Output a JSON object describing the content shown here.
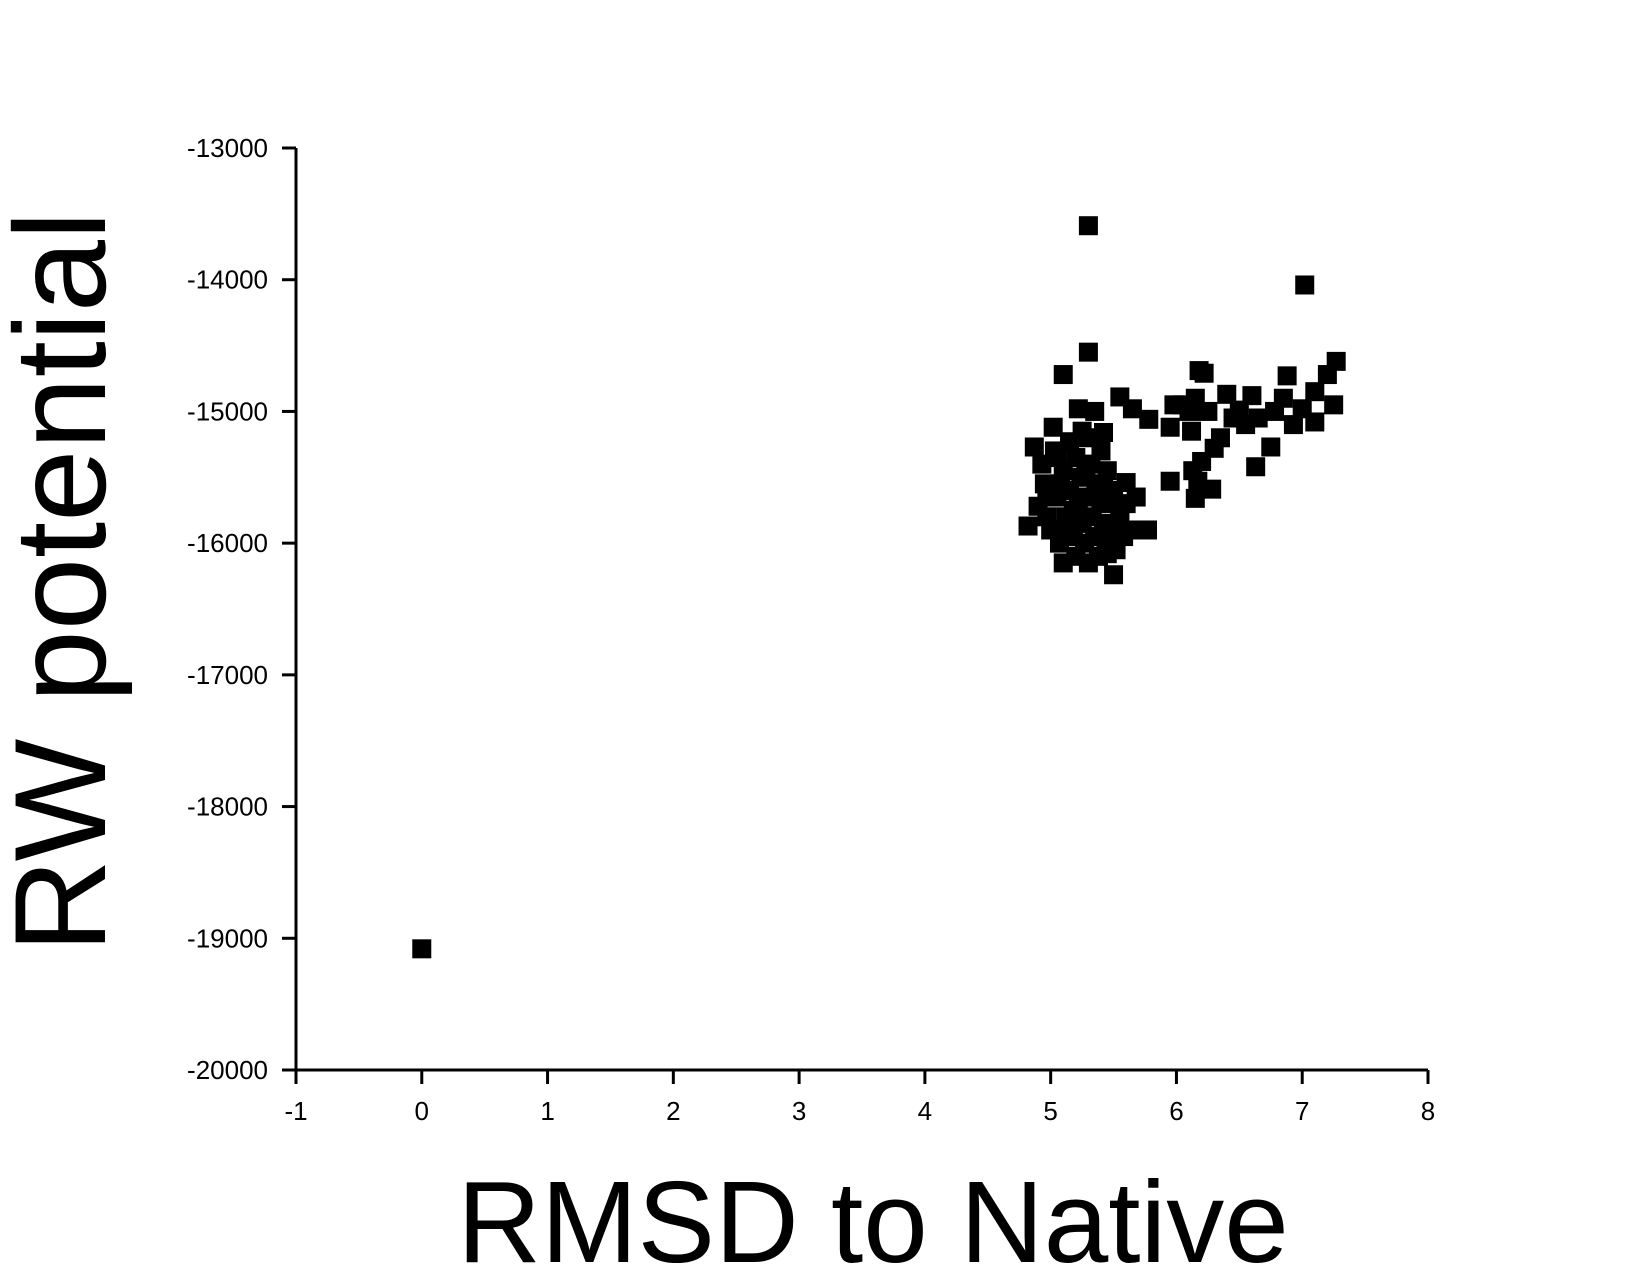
{
  "chart_data": {
    "type": "scatter",
    "x_label": "RMSD to Native",
    "y_label": "RW potential",
    "color": "#000000",
    "marker": "square",
    "xlim": [
      -1,
      8
    ],
    "xticks": [
      -1,
      0,
      1,
      2,
      3,
      4,
      5,
      6,
      7,
      8
    ],
    "ylim": [
      -20000,
      -13000
    ],
    "yticks": [
      -20000,
      -19000,
      -18000,
      -17000,
      -16000,
      -15000,
      -14000,
      -13000
    ],
    "x": [
      0,
      5.3,
      7.02,
      5.3,
      5.1,
      7.27,
      7.2,
      7.1,
      7.0,
      7.25,
      7.1,
      6.93,
      6.88,
      6.85,
      6.78,
      6.75,
      6.65,
      6.63,
      6.6,
      6.55,
      6.5,
      6.45,
      6.4,
      6.35,
      6.3,
      6.28,
      6.25,
      6.22,
      6.18,
      6.15,
      6.12,
      6.1,
      6.15,
      6.17,
      6.2,
      6.13,
      6.05,
      5.98,
      5.95,
      5.95,
      5.78,
      5.77,
      5.68,
      5.65,
      5.55,
      5.42,
      5.35,
      5.22,
      5.5,
      5.45,
      5.55,
      5.6,
      4.82,
      4.87,
      4.9,
      4.93,
      4.95,
      4.97,
      5.0,
      5.02,
      5.03,
      5.05,
      5.07,
      5.1,
      5.1,
      5.12,
      5.15,
      5.15,
      5.18,
      5.2,
      5.2,
      5.22,
      5.24,
      5.25,
      5.27,
      5.28,
      5.3,
      5.3,
      5.32,
      5.33,
      5.35,
      5.36,
      5.38,
      5.4,
      5.4,
      5.42,
      5.44,
      5.45,
      5.47,
      5.48,
      5.5,
      5.52,
      5.55,
      5.58,
      5.6,
      5.62,
      5.05,
      5.12,
      5.25,
      5.35,
      5.18,
      4.97,
      5.08,
      5.28,
      5.42
    ],
    "values": [
      -19080,
      -13590,
      -14040,
      -14550,
      -14720,
      -14620,
      -14720,
      -14850,
      -14980,
      -14950,
      -15080,
      -15100,
      -14730,
      -14900,
      -15000,
      -15270,
      -15050,
      -15420,
      -14880,
      -15100,
      -14990,
      -15050,
      -14870,
      -15200,
      -15280,
      -15590,
      -15000,
      -14710,
      -14690,
      -14900,
      -15150,
      -15000,
      -15660,
      -15530,
      -15380,
      -15450,
      -14950,
      -14950,
      -15120,
      -15530,
      -15060,
      -15900,
      -15650,
      -14980,
      -14890,
      -15160,
      -15000,
      -14980,
      -16240,
      -16080,
      -15750,
      -15540,
      -15870,
      -15270,
      -15720,
      -15400,
      -15550,
      -15800,
      -15900,
      -15120,
      -15300,
      -15650,
      -16000,
      -16150,
      -15450,
      -15800,
      -15230,
      -15600,
      -15950,
      -16100,
      -15350,
      -15700,
      -15500,
      -15850,
      -16000,
      -15200,
      -15650,
      -16150,
      -15400,
      -15800,
      -15950,
      -15550,
      -16100,
      -15700,
      -15300,
      -15850,
      -16000,
      -15450,
      -15650,
      -15900,
      -15600,
      -16050,
      -15800,
      -15950,
      -15700,
      -15900,
      -15350,
      -15900,
      -15150,
      -15650,
      -15750,
      -15630,
      -15550,
      -15450,
      -15550
    ]
  }
}
